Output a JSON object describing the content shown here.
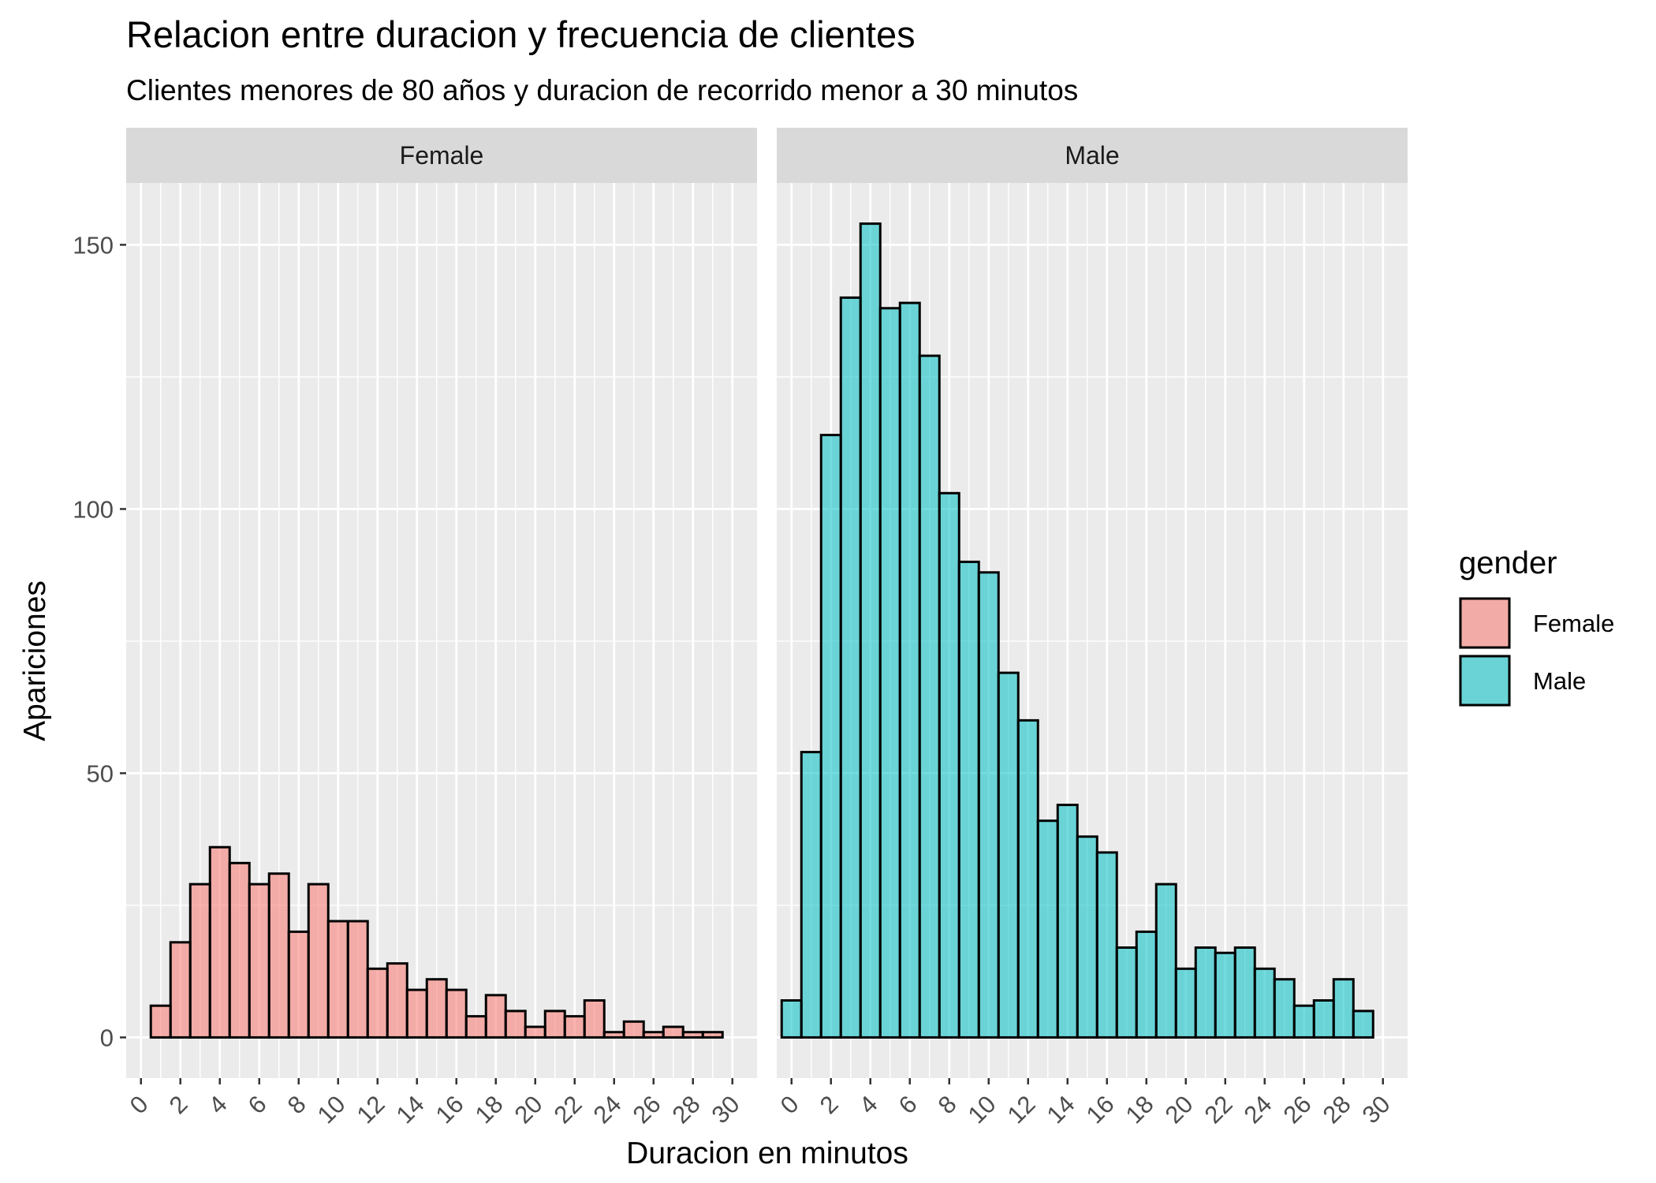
{
  "title": "Relacion entre duracion y frecuencia de clientes",
  "subtitle": "Clientes menores de 80 años y duracion de recorrido menor a 30 minutos",
  "chart_data": {
    "type": "bar",
    "title": "Relacion entre duracion y frecuencia de clientes",
    "subtitle": "Clientes menores de 80 años y duracion de recorrido menor a 30 minutos",
    "xlabel": "Duracion en minutos",
    "ylabel": "Apariciones",
    "xlim": [
      -0.75,
      31.25
    ],
    "ylim": [
      -7.7,
      161.7
    ],
    "x_ticks": [
      0,
      2,
      4,
      6,
      8,
      10,
      12,
      14,
      16,
      18,
      20,
      22,
      24,
      26,
      28,
      30
    ],
    "y_ticks": [
      0,
      50,
      100,
      150
    ],
    "grid": true,
    "legend": {
      "title": "gender",
      "position": "right"
    },
    "bin_width": 1,
    "x": [
      0,
      1,
      2,
      3,
      4,
      5,
      6,
      7,
      8,
      9,
      10,
      11,
      12,
      13,
      14,
      15,
      16,
      17,
      18,
      19,
      20,
      21,
      22,
      23,
      24,
      25,
      26,
      27,
      28,
      29,
      30
    ],
    "series": [
      {
        "name": "Female",
        "color": "#f8766d",
        "values": [
          0,
          6,
          18,
          29,
          36,
          33,
          29,
          31,
          20,
          29,
          22,
          22,
          13,
          14,
          9,
          11,
          9,
          4,
          8,
          5,
          2,
          5,
          4,
          7,
          1,
          3,
          1,
          2,
          1,
          1,
          0
        ]
      },
      {
        "name": "Male",
        "color": "#00bfc4",
        "values": [
          7,
          54,
          114,
          140,
          154,
          138,
          139,
          129,
          103,
          90,
          88,
          69,
          60,
          41,
          44,
          38,
          35,
          17,
          20,
          29,
          13,
          17,
          16,
          17,
          13,
          11,
          6,
          7,
          11,
          5,
          0
        ]
      }
    ]
  }
}
